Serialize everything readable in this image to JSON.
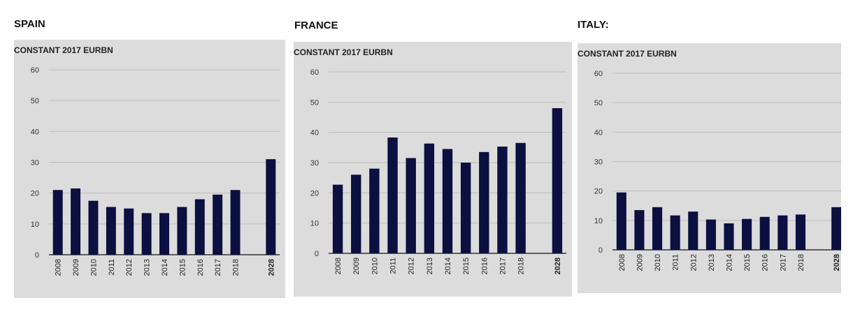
{
  "chart_data": [
    {
      "type": "bar",
      "title": "SPAIN",
      "ylabel": "CONSTANT 2017 EURBN",
      "categories": [
        "2008",
        "2009",
        "2010",
        "2011",
        "2012",
        "2013",
        "2014",
        "2015",
        "2016",
        "2017",
        "2018",
        "2028"
      ],
      "values": [
        21,
        21.5,
        17.5,
        15.5,
        15,
        13.5,
        13.5,
        15.5,
        18,
        19.5,
        21,
        31
      ],
      "yticks": [
        "0",
        "10",
        "20",
        "30",
        "40",
        "50",
        "60"
      ],
      "ylim": [
        0,
        60
      ],
      "grid": true,
      "bar_color": "#0b1040"
    },
    {
      "type": "bar",
      "title": "FRANCE",
      "ylabel": "CONSTANT 2017 EURBN",
      "categories": [
        "2008",
        "2009",
        "2010",
        "2011",
        "2012",
        "2013",
        "2014",
        "2015",
        "2016",
        "2017",
        "2018",
        "2028"
      ],
      "values": [
        22.7,
        26,
        28,
        38.3,
        31.5,
        36.3,
        34.5,
        30,
        33.5,
        35.3,
        36.5,
        48
      ],
      "yticks": [
        "0",
        "10",
        "20",
        "30",
        "40",
        "50",
        "60"
      ],
      "ylim": [
        0,
        60
      ],
      "grid": true,
      "bar_color": "#0b1040"
    },
    {
      "type": "bar",
      "title": "ITALY:",
      "ylabel": "CONSTANT 2017 EURBN",
      "categories": [
        "2008",
        "2009",
        "2010",
        "2011",
        "2012",
        "2013",
        "2014",
        "2015",
        "2016",
        "2017",
        "2018",
        "2028"
      ],
      "values": [
        19.5,
        13.5,
        14.5,
        11.7,
        13,
        10.3,
        9,
        10.5,
        11.2,
        11.7,
        12,
        14.5
      ],
      "yticks": [
        "0",
        "10",
        "20",
        "30",
        "40",
        "50",
        "60"
      ],
      "ylim": [
        0,
        60
      ],
      "grid": true,
      "bar_color": "#0b1040"
    }
  ]
}
